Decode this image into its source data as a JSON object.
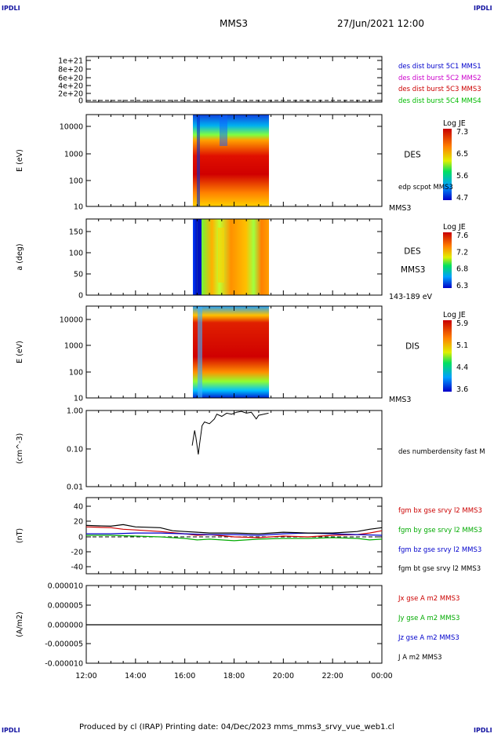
{
  "header": {
    "corner_tl": "IPDLI",
    "corner_tr": "IPDLI",
    "corner_bl": "IPDLI",
    "corner_br": "IPDLI",
    "title": "MMS3",
    "date": "27/Jun/2021 12:00"
  },
  "footer": {
    "text": "Produced by cl (IRAP)   Printing date: 04/Dec/2023   mms_mms3_srvy_vue_web1.cl"
  },
  "time_axis": {
    "ticks": [
      "12:00",
      "14:00",
      "16:00",
      "18:00",
      "20:00",
      "22:00",
      "00:00"
    ]
  },
  "chart_data": [
    {
      "type": "line",
      "id": "panel1",
      "ylabel": "",
      "ytick_labels": [
        "1e+21",
        "8e+20",
        "6e+20",
        "4e+20",
        "2e+20",
        "0"
      ],
      "legend": [
        {
          "label": "des dist burst 5C1 MMS1",
          "color": "#0000cc"
        },
        {
          "label": "des dist burst 5C2 MMS2",
          "color": "#cc00cc"
        },
        {
          "label": "des dist burst 5C3 MMS3",
          "color": "#cc0000"
        },
        {
          "label": "des dist burst 5C4 MMS4",
          "color": "#00bb00"
        }
      ]
    },
    {
      "type": "heatmap",
      "id": "panel2",
      "ylabel": "E (eV)",
      "ytick_labels": [
        "10000",
        "1000",
        "100",
        "10"
      ],
      "x_range": [
        "16:20",
        "19:30"
      ],
      "right_label": "DES",
      "right_sub": "edp scpot MMS3",
      "bottom_right": "MMS3",
      "colorbar": {
        "title": "Log JE",
        "ticks": [
          "7.3",
          "6.5",
          "5.6",
          "4.7"
        ]
      }
    },
    {
      "type": "heatmap",
      "id": "panel3",
      "ylabel": "a (deg)",
      "ytick_labels": [
        "150",
        "100",
        "50",
        "0"
      ],
      "x_range": [
        "16:20",
        "19:30"
      ],
      "right_label": "DES",
      "right_sub": "MMS3",
      "bottom_right": "143-189 eV",
      "colorbar": {
        "title": "Log JE",
        "ticks": [
          "7.6",
          "7.2",
          "6.8",
          "6.3"
        ]
      }
    },
    {
      "type": "heatmap",
      "id": "panel4",
      "ylabel": "E (eV)",
      "ytick_labels": [
        "10000",
        "1000",
        "100",
        "10"
      ],
      "x_range": [
        "16:20",
        "19:30"
      ],
      "right_label": "DIS",
      "bottom_right": "MMS3",
      "colorbar": {
        "title": "Log JE",
        "ticks": [
          "5.9",
          "5.1",
          "4.4",
          "3.6"
        ]
      }
    },
    {
      "type": "line",
      "id": "panel5",
      "ylabel": "(cm^-3)",
      "ytick_labels": [
        "1.00",
        "0.10",
        "0.01"
      ],
      "legend": [
        {
          "label": "des numberdensity fast M",
          "color": "#000000"
        }
      ],
      "series": [
        {
          "x_hours": [
            16.3,
            16.4,
            16.45,
            16.55,
            16.6,
            16.7,
            16.8,
            17.0,
            17.2,
            17.3,
            17.5,
            17.7,
            17.9,
            18.1,
            18.3,
            18.5,
            18.7,
            18.9,
            19.0,
            19.2,
            19.4
          ],
          "y": [
            0.12,
            0.3,
            0.2,
            0.07,
            0.13,
            0.4,
            0.5,
            0.45,
            0.6,
            0.8,
            0.7,
            0.85,
            0.8,
            0.9,
            0.95,
            0.85,
            0.9,
            0.6,
            0.75,
            0.8,
            0.85
          ]
        }
      ]
    },
    {
      "type": "line",
      "id": "panel6",
      "ylabel": "(nT)",
      "ytick_labels": [
        "40",
        "20",
        "0",
        "-20",
        "-40"
      ],
      "ylim": [
        -48,
        48
      ],
      "legend": [
        {
          "label": "fgm bx gse srvy l2 MMS3",
          "color": "#cc0000"
        },
        {
          "label": "fgm by gse srvy l2 MMS3",
          "color": "#00aa00"
        },
        {
          "label": "fgm bz gse srvy l2 MMS3",
          "color": "#0000cc"
        },
        {
          "label": "fgm bt gse srvy l2 MMS3",
          "color": "#000000"
        }
      ],
      "series": [
        {
          "color": "#cc0000",
          "x_hours": [
            12,
            13,
            13.5,
            14,
            15,
            16,
            16.5,
            17,
            18,
            19,
            20,
            21,
            22,
            23,
            23.5,
            24
          ],
          "y": [
            13,
            12,
            10,
            9,
            7,
            4,
            2,
            3,
            0,
            -1,
            1,
            0,
            2,
            3,
            5,
            8
          ]
        },
        {
          "color": "#00aa00",
          "x_hours": [
            12,
            13,
            14,
            15,
            16,
            16.5,
            17,
            18,
            19,
            20,
            21,
            22,
            23,
            23.5,
            24
          ],
          "y": [
            2,
            2,
            1,
            0,
            -2,
            -4,
            -3,
            -5,
            -3,
            -2,
            -2,
            -1,
            -2,
            -4,
            -3
          ]
        },
        {
          "color": "#0000cc",
          "x_hours": [
            12,
            13,
            14,
            15,
            16,
            17,
            18,
            19,
            20,
            21,
            22,
            23,
            24
          ],
          "y": [
            4,
            4,
            5,
            5,
            4,
            3,
            3,
            2,
            4,
            5,
            4,
            3,
            2
          ]
        },
        {
          "color": "#000000",
          "x_hours": [
            12,
            13,
            13.5,
            14,
            15,
            15.5,
            16,
            16.5,
            17,
            18,
            19,
            20,
            21,
            22,
            23,
            23.5,
            24
          ],
          "y": [
            15,
            14,
            16,
            13,
            12,
            8,
            7,
            6,
            5,
            5,
            4,
            6,
            5,
            5,
            7,
            10,
            12
          ]
        }
      ]
    },
    {
      "type": "line",
      "id": "panel7",
      "ylabel": "(A/m2)",
      "ytick_labels": [
        "0.000010",
        "0.000005",
        "0.000000",
        "-0.000005",
        "-0.000010"
      ],
      "legend": [
        {
          "label": "Jx gse A m2 MMS3",
          "color": "#cc0000"
        },
        {
          "label": "Jy gse A m2 MMS3",
          "color": "#00aa00"
        },
        {
          "label": "Jz gse A m2 MMS3",
          "color": "#0000cc"
        },
        {
          "label": "J A m2 MMS3",
          "color": "#000000"
        }
      ]
    }
  ]
}
